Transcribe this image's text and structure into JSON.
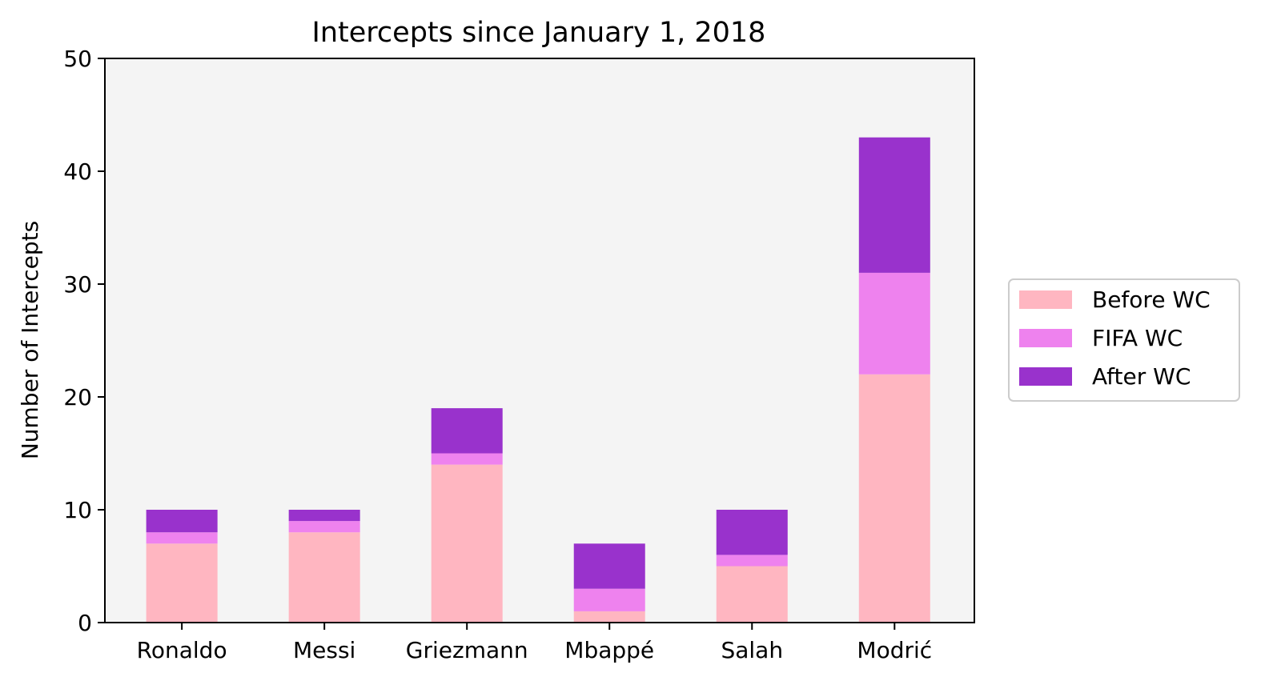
{
  "chart_data": {
    "type": "bar",
    "stacked": true,
    "title": "Intercepts since January 1, 2018",
    "xlabel": "",
    "ylabel": "Number of Intercepts",
    "categories": [
      "Ronaldo",
      "Messi",
      "Griezmann",
      "Mbappé",
      "Salah",
      "Modrić"
    ],
    "series": [
      {
        "name": "Before WC",
        "color": "#ffb6c1",
        "values": [
          7,
          8,
          14,
          1,
          5,
          22
        ]
      },
      {
        "name": "FIFA WC",
        "color": "#ee82ee",
        "values": [
          1,
          1,
          1,
          2,
          1,
          9
        ]
      },
      {
        "name": "After WC",
        "color": "#9932cc",
        "values": [
          2,
          1,
          4,
          4,
          4,
          12
        ]
      }
    ],
    "ylim": [
      0,
      50
    ],
    "yticks": [
      0,
      10,
      20,
      30,
      40,
      50
    ],
    "plot_background": "#f4f4f4",
    "grid": false,
    "legend_position": "right-center"
  }
}
